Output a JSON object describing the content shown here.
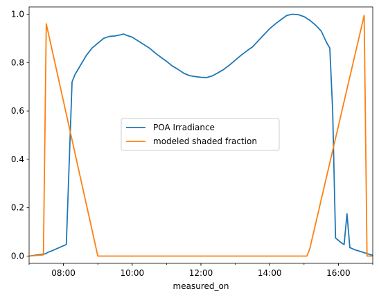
{
  "chart_data": {
    "type": "line",
    "title": "",
    "xlabel": "measured_on",
    "ylabel": "",
    "xlim": [
      "07:00",
      "17:00"
    ],
    "ylim": [
      -0.03,
      1.03
    ],
    "grid": false,
    "legend_position": "center",
    "x_ticks": [
      "08:00",
      "10:00",
      "12:00",
      "14:00",
      "16:00"
    ],
    "y_ticks": [
      "0.0",
      "0.2",
      "0.4",
      "0.6",
      "0.8",
      "1.0"
    ],
    "series": [
      {
        "name": "POA Irradiance",
        "color": "#1f77b4",
        "points": [
          [
            "07:00",
            0.0
          ],
          [
            "07:30",
            0.01
          ],
          [
            "07:32",
            0.015
          ],
          [
            "07:40",
            0.022
          ],
          [
            "08:05",
            0.048
          ],
          [
            "08:15",
            0.72
          ],
          [
            "08:20",
            0.75
          ],
          [
            "08:30",
            0.79
          ],
          [
            "08:40",
            0.83
          ],
          [
            "08:50",
            0.86
          ],
          [
            "09:00",
            0.88
          ],
          [
            "09:10",
            0.9
          ],
          [
            "09:20",
            0.908
          ],
          [
            "09:30",
            0.91
          ],
          [
            "09:40",
            0.915
          ],
          [
            "09:45",
            0.918
          ],
          [
            "09:50",
            0.913
          ],
          [
            "10:00",
            0.905
          ],
          [
            "10:10",
            0.89
          ],
          [
            "10:20",
            0.875
          ],
          [
            "10:30",
            0.86
          ],
          [
            "10:40",
            0.84
          ],
          [
            "10:50",
            0.822
          ],
          [
            "11:00",
            0.805
          ],
          [
            "11:10",
            0.786
          ],
          [
            "11:20",
            0.772
          ],
          [
            "11:30",
            0.756
          ],
          [
            "11:40",
            0.746
          ],
          [
            "11:50",
            0.742
          ],
          [
            "12:00",
            0.739
          ],
          [
            "12:10",
            0.738
          ],
          [
            "12:20",
            0.745
          ],
          [
            "12:30",
            0.758
          ],
          [
            "12:40",
            0.772
          ],
          [
            "12:50",
            0.79
          ],
          [
            "13:00",
            0.81
          ],
          [
            "13:10",
            0.83
          ],
          [
            "13:20",
            0.848
          ],
          [
            "13:30",
            0.865
          ],
          [
            "13:40",
            0.89
          ],
          [
            "13:50",
            0.915
          ],
          [
            "14:00",
            0.94
          ],
          [
            "14:10",
            0.96
          ],
          [
            "14:20",
            0.978
          ],
          [
            "14:30",
            0.995
          ],
          [
            "14:40",
            1.0
          ],
          [
            "14:50",
            0.998
          ],
          [
            "15:00",
            0.99
          ],
          [
            "15:10",
            0.975
          ],
          [
            "15:20",
            0.955
          ],
          [
            "15:30",
            0.93
          ],
          [
            "15:40",
            0.88
          ],
          [
            "15:45",
            0.86
          ],
          [
            "15:50",
            0.6
          ],
          [
            "15:55",
            0.075
          ],
          [
            "16:05",
            0.055
          ],
          [
            "16:10",
            0.048
          ],
          [
            "16:15",
            0.175
          ],
          [
            "16:20",
            0.035
          ],
          [
            "16:30",
            0.025
          ],
          [
            "16:40",
            0.018
          ],
          [
            "16:50",
            0.01
          ],
          [
            "17:00",
            0.003
          ]
        ]
      },
      {
        "name": "modeled shaded fraction",
        "color": "#ff7f0e",
        "points": [
          [
            "07:00",
            0.0
          ],
          [
            "07:25",
            0.005
          ],
          [
            "07:30",
            0.96
          ],
          [
            "09:00",
            0.0
          ],
          [
            "15:05",
            0.0
          ],
          [
            "15:10",
            0.03
          ],
          [
            "16:45",
            0.995
          ],
          [
            "16:50",
            0.0
          ],
          [
            "17:00",
            0.0
          ]
        ]
      }
    ]
  }
}
